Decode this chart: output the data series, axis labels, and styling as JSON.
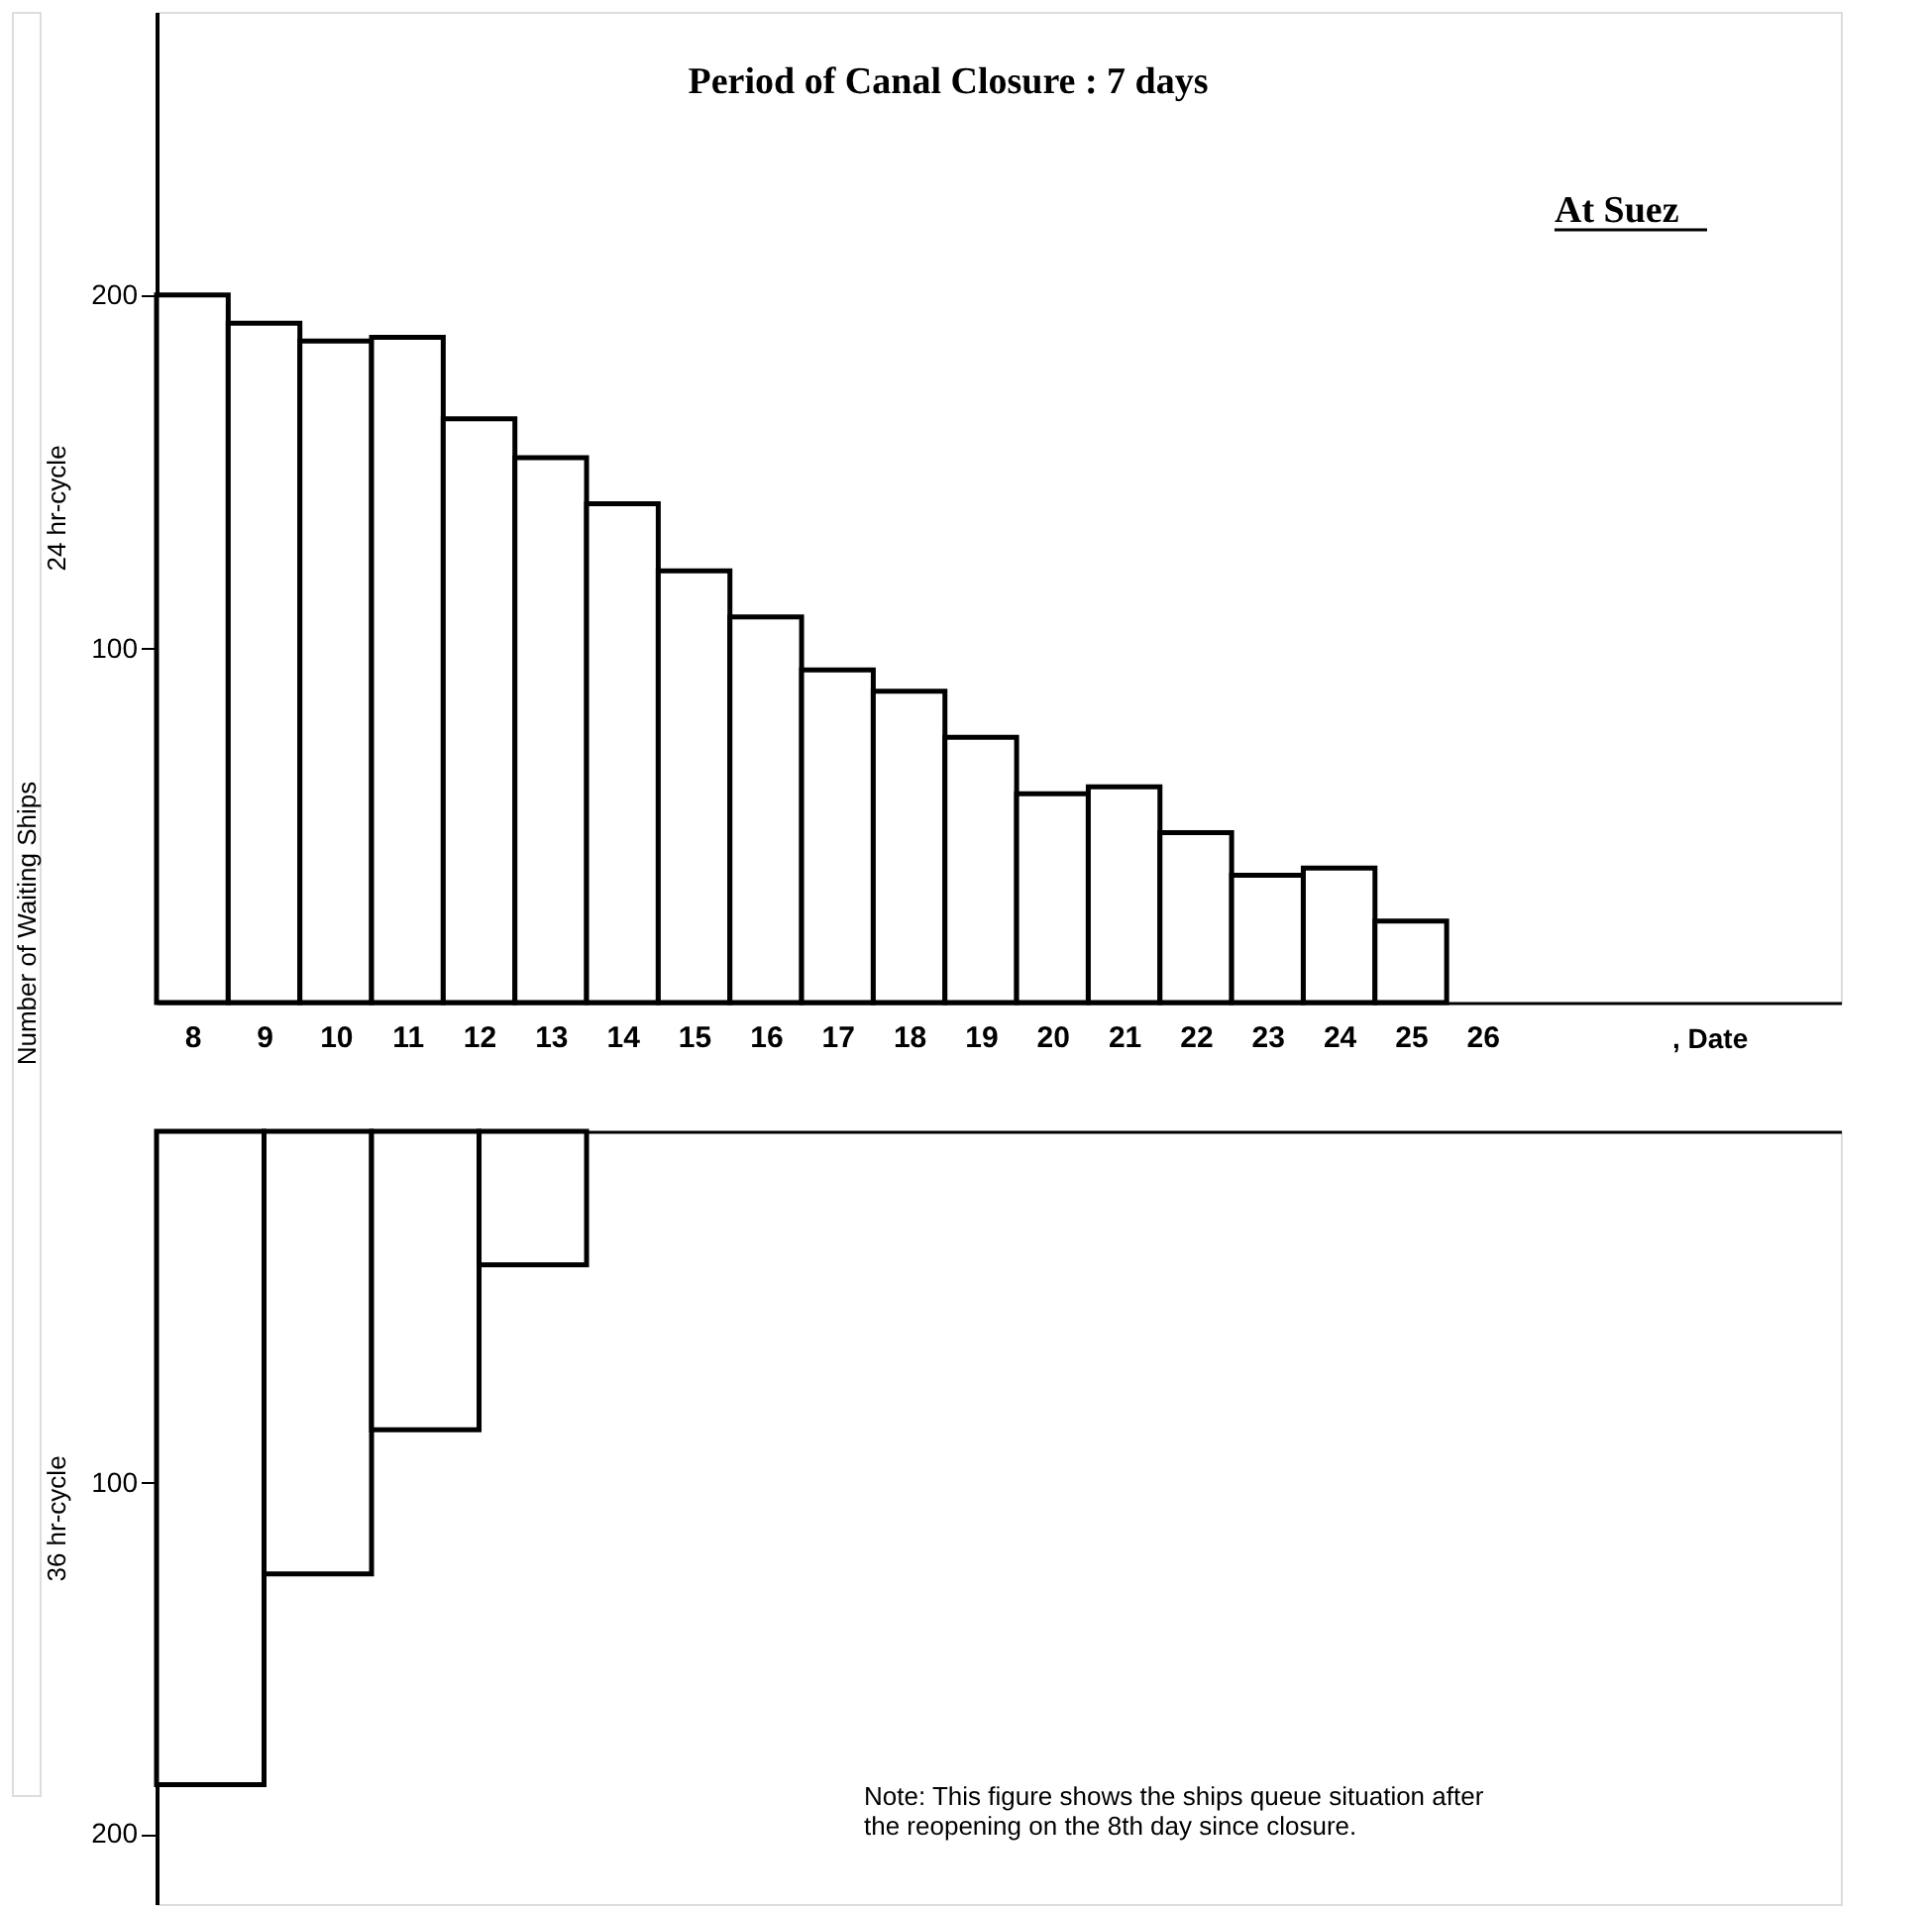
{
  "chart_data": [
    {
      "type": "bar",
      "title": "Period of Canal Closure : 7 days",
      "xlabel": ", Date",
      "ylabel": "24 hr-cycle",
      "color": "#ffffff",
      "x": [
        8,
        9,
        10,
        11,
        12,
        13,
        14,
        15,
        16,
        17,
        18,
        19,
        20,
        21,
        22,
        23,
        24,
        25
      ],
      "values": [
        200,
        192,
        187,
        188,
        165,
        154,
        141,
        122,
        109,
        94,
        88,
        75,
        59,
        61,
        48,
        36,
        38,
        23
      ],
      "xlim": [
        7.5,
        31
      ],
      "xticks": [
        8,
        9,
        10,
        11,
        12,
        13,
        14,
        15,
        16,
        17,
        18,
        19,
        20,
        21,
        22,
        23,
        24,
        25,
        26
      ],
      "ylim": [
        0,
        280
      ],
      "yticks": [
        100,
        200
      ],
      "annotations": [
        "At Suez",
        "Number of Waiting Ships"
      ]
    },
    {
      "type": "bar",
      "ylabel": "36 hr-cycle",
      "color": "#ffffff",
      "x": [
        8.25,
        9.75,
        11.25,
        12.75
      ],
      "values": [
        186,
        126,
        85,
        38
      ],
      "xlim": [
        7.5,
        31
      ],
      "ylim": [
        220,
        0
      ],
      "yticks": [
        100,
        200
      ],
      "tick_labels": "y",
      "annotations": [
        "Note: This figure shows the ships queue situation after\nthe reopening on the 8th day since closure."
      ]
    }
  ]
}
